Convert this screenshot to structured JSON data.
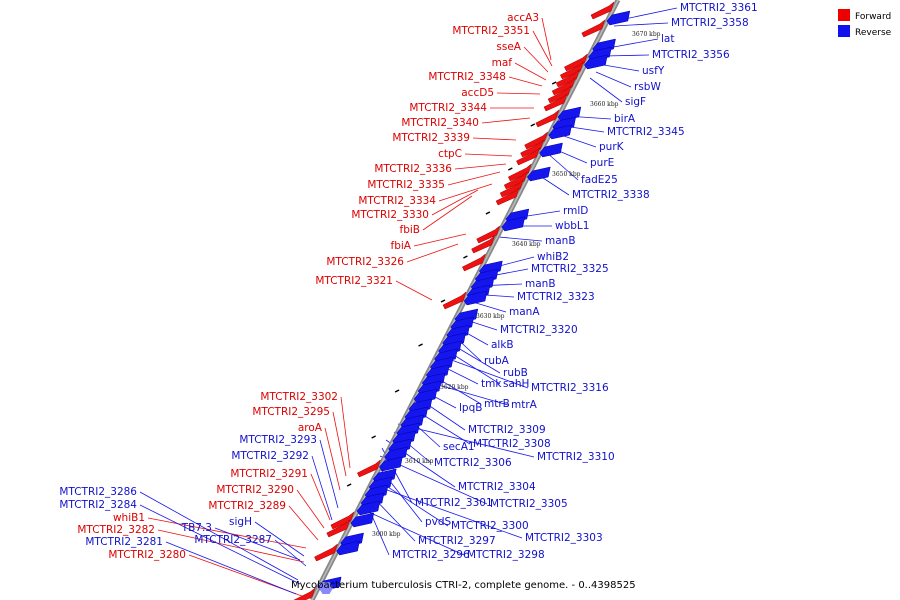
{
  "caption": "Mycobacterium tuberculosis CTRI-2, complete genome. - 0..4398525",
  "legend": [
    {
      "label": "Forward",
      "color": "#ee0000"
    },
    {
      "label": "Reverse",
      "color": "#1111ee"
    }
  ],
  "ticks": [
    "3600 kbp",
    "3610 kbp",
    "3620 kbp",
    "3630 kbp",
    "3640 kbp",
    "3650 kbp",
    "3660 kbp",
    "3670 kbp"
  ],
  "forward_labels": [
    "accA3",
    "MTCTRI2_3351",
    "sseA",
    "maf",
    "MTCTRI2_3348",
    "accD5",
    "MTCTRI2_3344",
    "MTCTRI2_3340",
    "MTCTRI2_3339",
    "ctpC",
    "MTCTRI2_3336",
    "MTCTRI2_3335",
    "MTCTRI2_3334",
    "MTCTRI2_3330",
    "fbiB",
    "fbiA",
    "MTCTRI2_3326",
    "MTCTRI2_3321",
    "MTCTRI2_3302",
    "MTCTRI2_3295",
    "aroA",
    "MTCTRI2_3291",
    "MTCTRI2_3290",
    "MTCTRI2_3289",
    "whiB1",
    "MTCTRI2_3282",
    "MTCTRI2_3280"
  ],
  "reverse_labels_left": [
    "MTCTRI2_3293",
    "MTCTRI2_3292",
    "MTCTRI2_3286",
    "MTCTRI2_3284",
    "sigH",
    "TB7.3",
    "MTCTRI2_3287",
    "MTCTRI2_3281"
  ],
  "reverse_labels_right": [
    "MTCTRI2_3361",
    "MTCTRI2_3358",
    "lat",
    "MTCTRI2_3356",
    "usfY",
    "rsbW",
    "sigF",
    "birA",
    "MTCTRI2_3345",
    "purK",
    "purE",
    "fadE25",
    "MTCTRI2_3338",
    "rmlD",
    "wbbL1",
    "manB",
    "whiB2",
    "MTCTRI2_3325",
    "manB",
    "MTCTRI2_3323",
    "manA",
    "MTCTRI2_3320",
    "alkB",
    "rubA",
    "rubB",
    "sahH",
    "MTCTRI2_3316",
    "tmk",
    "mtrB",
    "mtrA",
    "lpqB",
    "MTCTRI2_3309",
    "MTCTRI2_3308",
    "secA1",
    "MTCTRI2_3310",
    "MTCTRI2_3306",
    "MTCTRI2_3304",
    "MTCTRI2_3301",
    "MTCTRI2_3305",
    "pvdS",
    "MTCTRI2_3300",
    "MTCTRI2_3303",
    "MTCTRI2_3297",
    "MTCTRI2_3296",
    "MTCTRI2_3298"
  ]
}
